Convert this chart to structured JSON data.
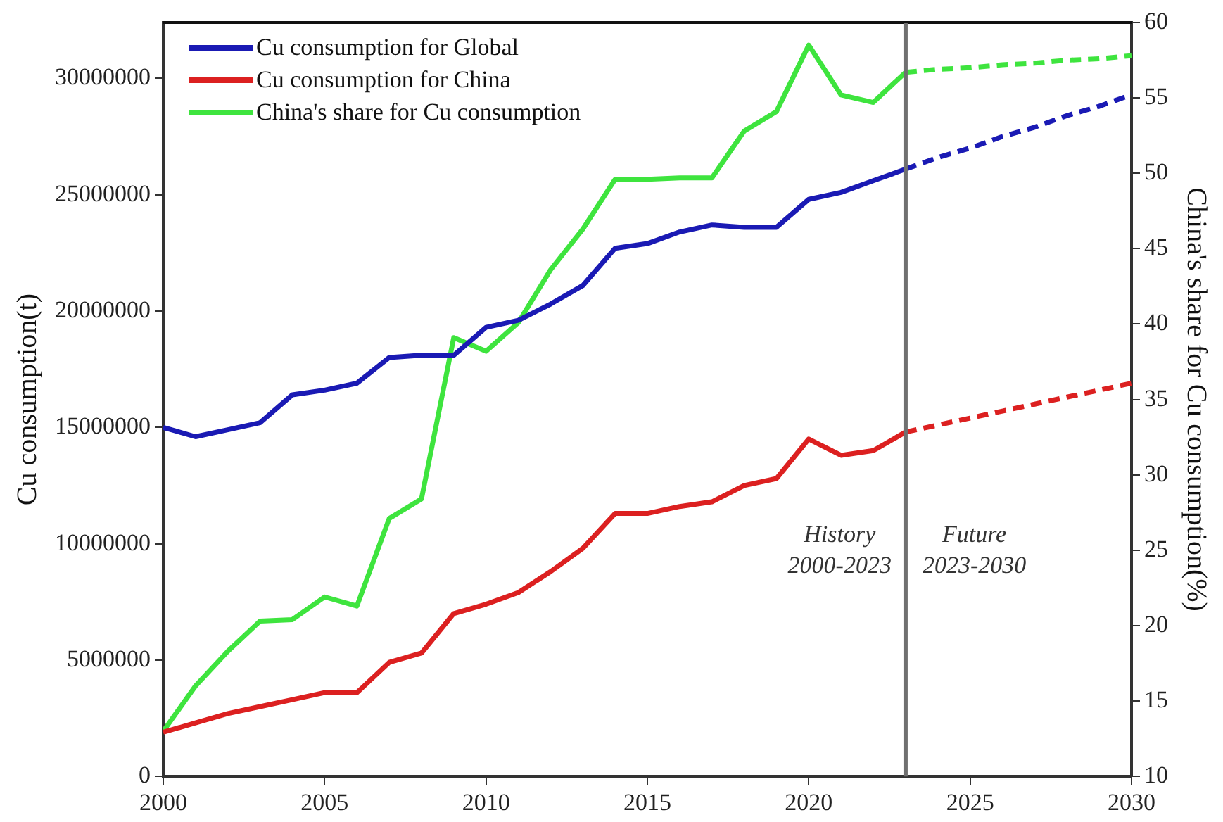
{
  "chart_data": {
    "type": "line",
    "xlabel": null,
    "ylabel": "Cu consumption(t)",
    "y2label": "China's share for Cu consumption(%)",
    "x": [
      2000,
      2001,
      2002,
      2003,
      2004,
      2005,
      2006,
      2007,
      2008,
      2009,
      2010,
      2011,
      2012,
      2013,
      2014,
      2015,
      2016,
      2017,
      2018,
      2019,
      2020,
      2021,
      2022,
      2023,
      2024,
      2025,
      2026,
      2027,
      2028,
      2029,
      2030
    ],
    "series": [
      {
        "name": "Cu consumption for Global",
        "color": "#1a1ab4",
        "values": [
          15000000,
          14600000,
          14900000,
          15200000,
          16400000,
          16600000,
          16900000,
          18000000,
          18100000,
          18100000,
          19300000,
          19600000,
          20300000,
          21100000,
          22700000,
          22900000,
          23400000,
          23700000,
          23600000,
          23600000,
          24800000,
          25100000,
          25600000,
          26100000,
          null,
          null,
          null,
          null,
          null,
          null,
          null
        ]
      },
      {
        "name": "Cu consumption for China",
        "color": "#dc2020",
        "values": [
          1900000,
          2300000,
          2700000,
          3000000,
          3300000,
          3600000,
          3600000,
          4900000,
          5300000,
          7000000,
          7400000,
          7900000,
          8800000,
          9800000,
          11300000,
          11300000,
          11600000,
          11800000,
          12500000,
          12800000,
          14500000,
          13800000,
          14000000,
          14800000,
          null,
          null,
          null,
          null,
          null,
          null,
          null
        ]
      },
      {
        "name": "China's share for Cu consumption",
        "color": "#3ee43e",
        "axis": "y2",
        "values": [
          13.0,
          16.0,
          18.3,
          20.3,
          20.4,
          21.9,
          21.3,
          27.1,
          28.4,
          39.1,
          38.2,
          40.1,
          43.6,
          46.3,
          49.6,
          49.6,
          49.7,
          49.7,
          52.8,
          54.1,
          58.5,
          55.2,
          54.7,
          56.7,
          null,
          null,
          null,
          null,
          null,
          null,
          null
        ]
      },
      {
        "color": "#1a1ab4",
        "line_style": "dashed",
        "values": [
          null,
          null,
          null,
          null,
          null,
          null,
          null,
          null,
          null,
          null,
          null,
          null,
          null,
          null,
          null,
          null,
          null,
          null,
          null,
          null,
          null,
          null,
          null,
          26100000,
          26600000,
          27000000,
          27500000,
          27900000,
          28400000,
          28800000,
          29300000
        ]
      },
      {
        "color": "#dc2020",
        "line_style": "dashed",
        "values": [
          null,
          null,
          null,
          null,
          null,
          null,
          null,
          null,
          null,
          null,
          null,
          null,
          null,
          null,
          null,
          null,
          null,
          null,
          null,
          null,
          null,
          null,
          null,
          14800000,
          15100000,
          15400000,
          15700000,
          16000000,
          16300000,
          16600000,
          16900000
        ]
      },
      {
        "color": "#3ee43e",
        "line_style": "dashed",
        "axis": "y2",
        "values": [
          null,
          null,
          null,
          null,
          null,
          null,
          null,
          null,
          null,
          null,
          null,
          null,
          null,
          null,
          null,
          null,
          null,
          null,
          null,
          null,
          null,
          null,
          null,
          56.7,
          56.9,
          57.0,
          57.2,
          57.3,
          57.5,
          57.6,
          57.8
        ]
      }
    ],
    "xlim": [
      2000,
      2030
    ],
    "xticks": [
      2000,
      2005,
      2010,
      2015,
      2020,
      2025,
      2030
    ],
    "ylim": [
      0,
      32400000
    ],
    "yticks": [
      0,
      5000000,
      10000000,
      15000000,
      20000000,
      25000000,
      30000000
    ],
    "y2lim": [
      10,
      60
    ],
    "y2ticks": [
      10,
      15,
      20,
      25,
      30,
      35,
      40,
      45,
      50,
      55,
      60
    ],
    "ref_lines": [
      {
        "axis": "x",
        "value": 2023,
        "color": "#707070"
      }
    ],
    "annotations": [
      "History\n2000-2023",
      "Future\n2023-2030"
    ],
    "legend": "top left",
    "marker": "none",
    "line_style": "solid",
    "grid": false
  }
}
